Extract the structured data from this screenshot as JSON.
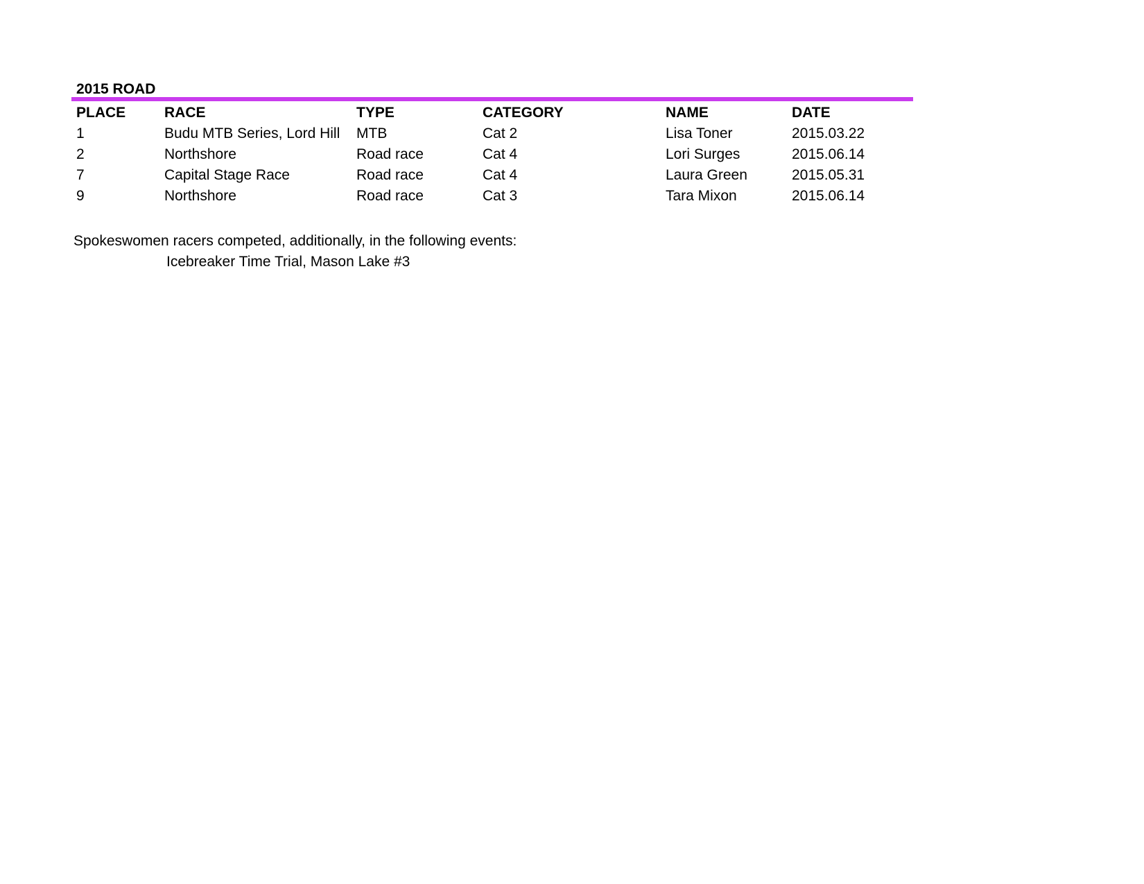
{
  "page": {
    "title": "2015 ROAD",
    "accent_color": "#c93cee"
  },
  "table": {
    "columns": [
      "PLACE",
      "RACE",
      "TYPE",
      "CATEGORY",
      "NAME",
      "DATE"
    ],
    "rows": [
      [
        "1",
        "Budu MTB Series, Lord Hill",
        "MTB",
        "Cat 2",
        "Lisa Toner",
        "2015.03.22"
      ],
      [
        "2",
        "Northshore",
        "Road race",
        "Cat 4",
        "Lori Surges",
        "2015.06.14"
      ],
      [
        "7",
        "Capital Stage Race",
        "Road race",
        "Cat 4",
        "Laura Green",
        "2015.05.31"
      ],
      [
        "9",
        "Northshore",
        "Road race",
        "Cat 3",
        "Tara Mixon",
        "2015.06.14"
      ]
    ]
  },
  "notes": {
    "line1": "Spokeswomen racers competed, additionally, in the following events:",
    "line2": "Icebreaker Time Trial, Mason Lake #3"
  }
}
